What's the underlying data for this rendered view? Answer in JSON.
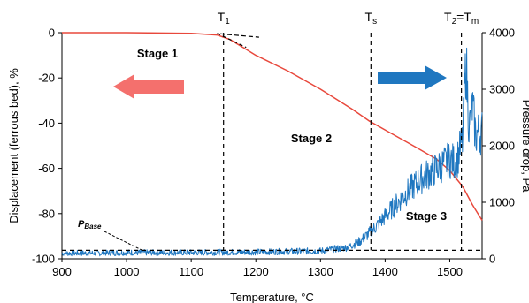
{
  "chart_data": {
    "type": "line",
    "title": "",
    "xlabel": "Temperature, °C",
    "ylabel_left": "Displacement (ferrous bed), %",
    "ylabel_right": "Pressure drop, Pa",
    "xlim": [
      900,
      1550
    ],
    "ylim_left": [
      -100,
      0
    ],
    "ylim_right": [
      0,
      4000
    ],
    "x_ticks": [
      900,
      1000,
      1100,
      1200,
      1300,
      1400,
      1500
    ],
    "y_left_ticks": [
      0,
      -20,
      -40,
      -60,
      -80,
      -100
    ],
    "y_right_ticks": [
      0,
      1000,
      2000,
      3000,
      4000
    ],
    "grid": false,
    "series": [
      {
        "axis": "left",
        "color": "#e8483c",
        "x": [
          900,
          1000,
          1100,
          1140,
          1160,
          1180,
          1200,
          1250,
          1300,
          1350,
          1375,
          1400,
          1450,
          1480,
          1500,
          1520,
          1535,
          1550
        ],
        "y": [
          0,
          0,
          -0.3,
          -1,
          -3,
          -6.5,
          -10,
          -17,
          -25,
          -34,
          -39,
          -43,
          -51,
          -56,
          -61,
          -68,
          -76,
          -83
        ]
      },
      {
        "axis": "right",
        "color": "#1f77c0",
        "x": [
          900,
          950,
          1000,
          1100,
          1200,
          1300,
          1340,
          1360,
          1380,
          1400,
          1420,
          1440,
          1460,
          1480,
          1500,
          1510,
          1520,
          1525,
          1530,
          1535,
          1540,
          1550
        ],
        "y": [
          100,
          100,
          110,
          110,
          120,
          140,
          200,
          300,
          500,
          750,
          1000,
          1250,
          1450,
          1600,
          1750,
          1700,
          2100,
          3500,
          2300,
          2700,
          2200,
          2250
        ],
        "noise": true
      }
    ],
    "markers": [
      {
        "label": "T",
        "sub": "1",
        "x": 1150
      },
      {
        "label": "T",
        "sub": "s",
        "x": 1378
      },
      {
        "label": "T",
        "sub": "2",
        "label_suffix": "=T",
        "suffix_sub": "m",
        "x": 1518
      }
    ],
    "annotations": {
      "stages": [
        "Stage 1",
        "Stage 2",
        "Stage 3"
      ],
      "pbase": "P",
      "pbase_sub": "Base"
    },
    "arrows": {
      "left_color": "#f4706d",
      "right_color": "#1f77c0"
    },
    "baseline_right": 150,
    "tangent": {
      "x1": 1145,
      "y1": -0.5,
      "x2": 1205,
      "y2": -2
    }
  }
}
